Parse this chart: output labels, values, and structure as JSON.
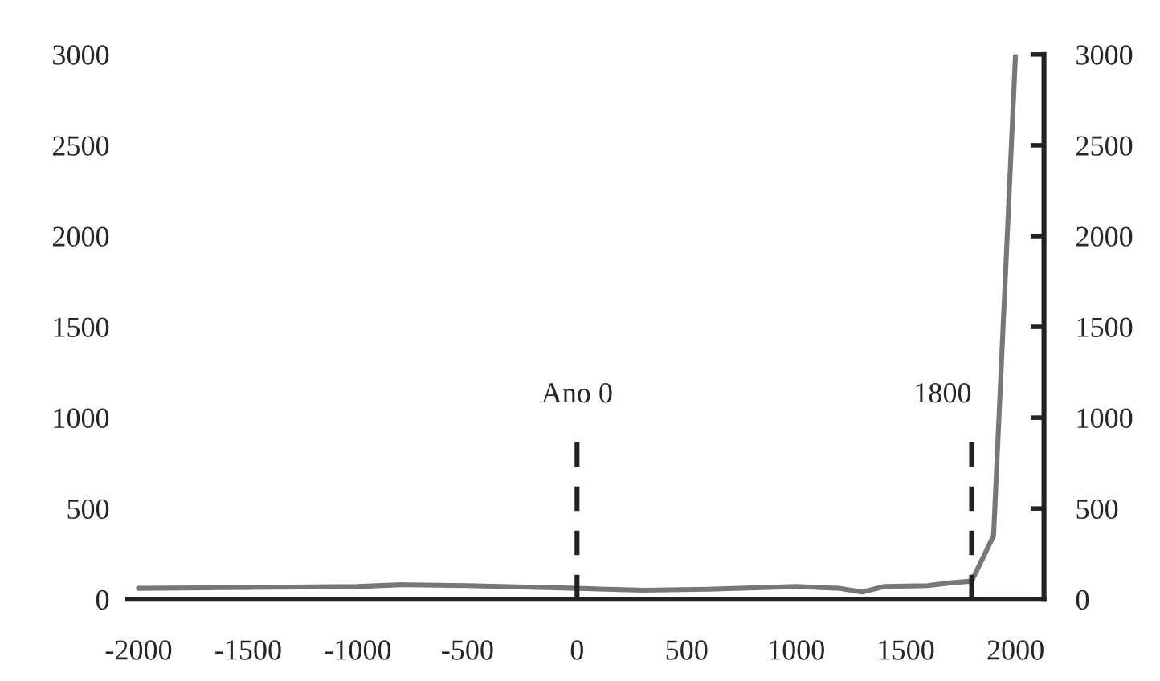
{
  "chart_data": {
    "type": "line",
    "x": [
      -2000,
      -1500,
      -1000,
      -800,
      -500,
      0,
      300,
      600,
      1000,
      1200,
      1300,
      1400,
      1600,
      1700,
      1800,
      1900,
      2000
    ],
    "series": [
      {
        "color": "#777777",
        "values": [
          60,
          65,
          70,
          80,
          75,
          60,
          50,
          55,
          70,
          60,
          40,
          70,
          75,
          90,
          100,
          350,
          3000
        ]
      }
    ],
    "xlim": [
      -2050,
      2130
    ],
    "xticks": [
      -2000,
      -1500,
      -1000,
      -500,
      0,
      500,
      1000,
      1500,
      2000
    ],
    "ylim": [
      0,
      3000
    ],
    "yticks": [
      0,
      500,
      1000,
      1500,
      2000,
      2500,
      3000
    ],
    "y2lim": [
      0,
      3000
    ],
    "y2ticks": [
      0,
      500,
      1000,
      1500,
      2000,
      2500,
      3000
    ],
    "ref_lines": [
      {
        "axis": "x",
        "value": 0,
        "label": "Ano 0",
        "color": "#222222",
        "line_style": "dashed"
      },
      {
        "axis": "x",
        "value": 1800,
        "label": "1800",
        "color": "#222222",
        "line_style": "dashed"
      }
    ],
    "grid": false,
    "legend": false
  }
}
